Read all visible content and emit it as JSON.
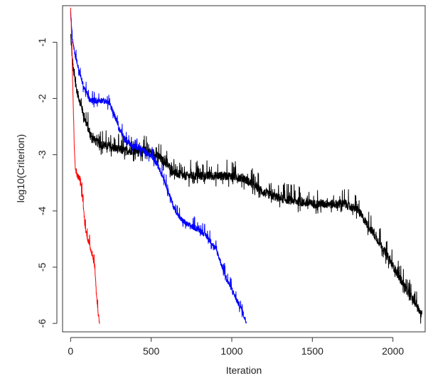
{
  "chart_data": {
    "type": "line",
    "title": "",
    "xlabel": "Iteration",
    "ylabel": "log10(Criterion)",
    "xlim": [
      -50,
      2200
    ],
    "ylim": [
      -6.15,
      -0.35
    ],
    "x_ticks": [
      0,
      500,
      1000,
      1500,
      2000
    ],
    "x_tick_labels": [
      "0",
      "500",
      "1000",
      "1500",
      "2000"
    ],
    "y_ticks": [
      -1,
      -2,
      -3,
      -4,
      -5,
      -6
    ],
    "y_tick_labels": [
      "-1",
      "-2",
      "-3",
      "-4",
      "-5",
      "-6"
    ],
    "grid": false,
    "legend": null,
    "series": [
      {
        "color": "#ff0000",
        "noise": 0.1,
        "points": [
          [
            0,
            -0.35
          ],
          [
            8,
            -1.1
          ],
          [
            15,
            -2.0
          ],
          [
            22,
            -2.8
          ],
          [
            30,
            -3.3
          ],
          [
            45,
            -3.4
          ],
          [
            60,
            -3.45
          ],
          [
            75,
            -3.8
          ],
          [
            90,
            -4.3
          ],
          [
            105,
            -4.5
          ],
          [
            120,
            -4.65
          ],
          [
            135,
            -4.8
          ],
          [
            150,
            -5.0
          ],
          [
            160,
            -5.5
          ],
          [
            170,
            -5.8
          ],
          [
            180,
            -6.0
          ]
        ]
      },
      {
        "color": "#0000ff",
        "noise": 0.1,
        "points": [
          [
            0,
            -0.5
          ],
          [
            10,
            -0.9
          ],
          [
            25,
            -1.2
          ],
          [
            50,
            -1.5
          ],
          [
            80,
            -1.8
          ],
          [
            120,
            -2.05
          ],
          [
            160,
            -2.05
          ],
          [
            200,
            -2.05
          ],
          [
            240,
            -2.1
          ],
          [
            270,
            -2.3
          ],
          [
            300,
            -2.55
          ],
          [
            340,
            -2.75
          ],
          [
            380,
            -2.85
          ],
          [
            420,
            -2.9
          ],
          [
            460,
            -2.95
          ],
          [
            500,
            -3.05
          ],
          [
            540,
            -3.2
          ],
          [
            580,
            -3.45
          ],
          [
            610,
            -3.7
          ],
          [
            640,
            -3.95
          ],
          [
            680,
            -4.15
          ],
          [
            720,
            -4.25
          ],
          [
            760,
            -4.3
          ],
          [
            800,
            -4.35
          ],
          [
            840,
            -4.45
          ],
          [
            880,
            -4.6
          ],
          [
            910,
            -4.75
          ],
          [
            940,
            -5.0
          ],
          [
            970,
            -5.25
          ],
          [
            1000,
            -5.4
          ],
          [
            1030,
            -5.6
          ],
          [
            1060,
            -5.75
          ],
          [
            1090,
            -6.0
          ]
        ]
      },
      {
        "color": "#000000",
        "noise": 0.15,
        "points": [
          [
            0,
            -0.9
          ],
          [
            10,
            -1.3
          ],
          [
            20,
            -1.6
          ],
          [
            40,
            -1.9
          ],
          [
            60,
            -2.1
          ],
          [
            90,
            -2.4
          ],
          [
            120,
            -2.65
          ],
          [
            160,
            -2.8
          ],
          [
            200,
            -2.85
          ],
          [
            260,
            -2.9
          ],
          [
            330,
            -2.95
          ],
          [
            400,
            -2.95
          ],
          [
            460,
            -2.95
          ],
          [
            520,
            -3.0
          ],
          [
            560,
            -3.1
          ],
          [
            600,
            -3.2
          ],
          [
            650,
            -3.35
          ],
          [
            700,
            -3.4
          ],
          [
            800,
            -3.4
          ],
          [
            900,
            -3.4
          ],
          [
            1000,
            -3.4
          ],
          [
            1080,
            -3.45
          ],
          [
            1150,
            -3.6
          ],
          [
            1200,
            -3.7
          ],
          [
            1300,
            -3.8
          ],
          [
            1400,
            -3.85
          ],
          [
            1500,
            -3.9
          ],
          [
            1600,
            -3.9
          ],
          [
            1700,
            -3.9
          ],
          [
            1780,
            -4.0
          ],
          [
            1850,
            -4.3
          ],
          [
            1920,
            -4.6
          ],
          [
            1980,
            -4.9
          ],
          [
            2040,
            -5.2
          ],
          [
            2100,
            -5.5
          ],
          [
            2150,
            -5.7
          ],
          [
            2180,
            -5.9
          ]
        ]
      }
    ]
  }
}
